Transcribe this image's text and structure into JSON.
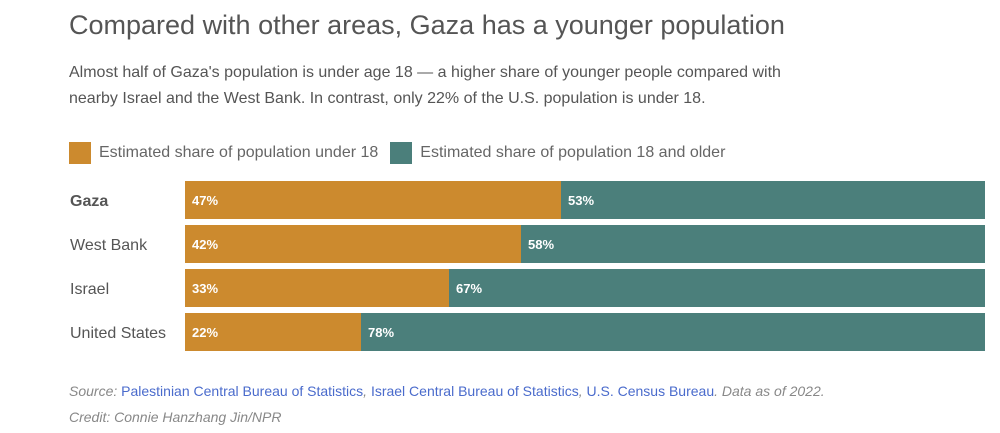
{
  "title": "Compared with other areas, Gaza has a younger population",
  "subtitle": "Almost half of Gaza's population is under age 18 — a higher share of younger people compared with nearby Israel and the West Bank. In contrast, only 22% of the U.S. population is under 18.",
  "chart_data": {
    "type": "bar",
    "orientation": "horizontal-stacked-100",
    "categories": [
      "Gaza",
      "West Bank",
      "Israel",
      "United States"
    ],
    "series": [
      {
        "name": "Estimated share of population under 18",
        "values": [
          47,
          42,
          33,
          22
        ],
        "color": "#cc8a2e"
      },
      {
        "name": "Estimated share of population 18 and older",
        "values": [
          53,
          58,
          67,
          78
        ],
        "color": "#4b7f7b"
      }
    ],
    "unit": "%",
    "xlim": [
      0,
      100
    ],
    "highlight": "Gaza"
  },
  "footer": {
    "source_label": "Source:",
    "sources": [
      "Palestinian Central Bureau of Statistics",
      "Israel Central Bureau of Statistics",
      "U.S. Census Bureau"
    ],
    "note": "Data as of 2022.",
    "credit": "Credit: Connie Hanzhang Jin/NPR"
  }
}
